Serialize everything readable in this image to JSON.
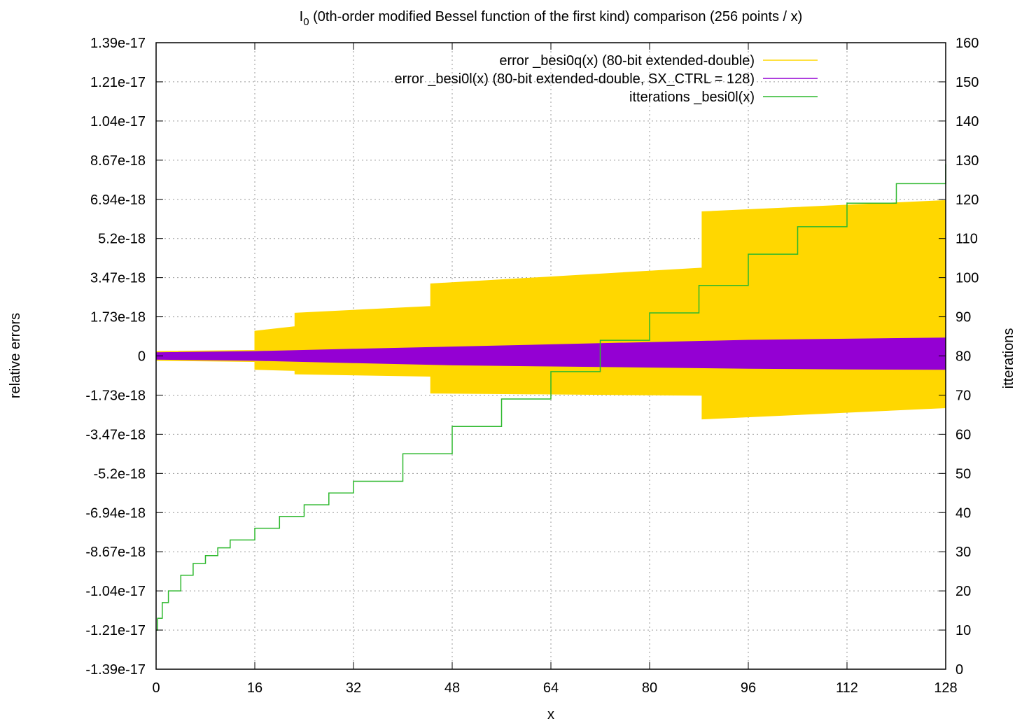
{
  "chart_data": {
    "type": "line",
    "title_main": "I",
    "title_sub": "0",
    "title_rest": " (0th-order modified Bessel function of the first kind) comparison (256 points / x)",
    "xlabel": "x",
    "ylabel": "relative errors",
    "y2label": "itterations",
    "xlim": [
      0,
      128
    ],
    "ylim": [
      -1.39e-17,
      1.39e-17
    ],
    "y2lim": [
      0,
      160
    ],
    "grid": true,
    "legend_position": "top-right",
    "x_ticks": [
      "0",
      "16",
      "32",
      "48",
      "64",
      "80",
      "96",
      "112",
      "128"
    ],
    "y_ticks": [
      "-1.39e-17",
      "-1.21e-17",
      "-1.04e-17",
      "-8.67e-18",
      "-6.94e-18",
      "-5.2e-18",
      "-3.47e-18",
      "-1.73e-18",
      "0",
      "1.73e-18",
      "3.47e-18",
      "5.2e-18",
      "6.94e-18",
      "8.67e-18",
      "1.04e-17",
      "1.21e-17",
      "1.39e-17"
    ],
    "y_tick_values": [
      -1.39e-17,
      -1.2163e-17,
      -1.0425e-17,
      -8.6875e-18,
      -6.95e-18,
      -5.2125e-18,
      -3.475e-18,
      -1.7375e-18,
      0,
      1.7375e-18,
      3.475e-18,
      5.2125e-18,
      6.95e-18,
      8.6875e-18,
      1.0425e-17,
      1.2163e-17,
      1.39e-17
    ],
    "y2_ticks": [
      "0",
      "10",
      "20",
      "30",
      "40",
      "50",
      "60",
      "70",
      "80",
      "90",
      "100",
      "110",
      "120",
      "130",
      "140",
      "150",
      "160"
    ],
    "series": [
      {
        "name": "error _besi0q(x) (80-bit extended-double)",
        "color": "#ffd700",
        "style": "band",
        "axis": "y",
        "x": [
          0,
          16,
          16,
          22.5,
          22.5,
          44.5,
          44.5,
          88.5,
          88.5,
          128
        ],
        "upper": [
          2e-19,
          2.5e-19,
          1.1e-18,
          1.3e-18,
          1.9e-18,
          2.2e-18,
          3.2e-18,
          3.9e-18,
          6.4e-18,
          6.9e-18
        ],
        "lower": [
          -2e-19,
          -2.5e-19,
          -6e-19,
          -6.5e-19,
          -8e-19,
          -9e-19,
          -1.65e-18,
          -1.75e-18,
          -2.8e-18,
          -2.3e-18
        ]
      },
      {
        "name": "error _besi0l(x) (80-bit extended-double, SX_CTRL = 128)",
        "color": "#9400d3",
        "style": "band",
        "axis": "y",
        "x": [
          0,
          16,
          32,
          48,
          64,
          80,
          96,
          112,
          128
        ],
        "upper": [
          1.5e-19,
          2e-19,
          3e-19,
          4e-19,
          5e-19,
          6e-19,
          7e-19,
          7.5e-19,
          8e-19
        ],
        "lower": [
          -1.5e-19,
          -2e-19,
          -3e-19,
          -4e-19,
          -4.5e-19,
          -5e-19,
          -5.5e-19,
          -5.8e-19,
          -6e-19
        ]
      },
      {
        "name": "itterations _besi0l(x)",
        "color": "#2db82d",
        "style": "steps",
        "axis": "y2",
        "x": [
          0,
          0.25,
          1,
          2,
          4,
          6,
          8,
          10,
          12,
          16,
          20,
          24,
          28,
          32,
          40,
          48,
          56,
          64,
          72,
          80,
          88,
          96,
          104,
          112,
          120,
          128
        ],
        "values": [
          10,
          13,
          17,
          20,
          24,
          27,
          29,
          31,
          33,
          36,
          39,
          42,
          45,
          48,
          55,
          62,
          69,
          76,
          84,
          91,
          98,
          106,
          113,
          119,
          124,
          129
        ]
      }
    ]
  }
}
